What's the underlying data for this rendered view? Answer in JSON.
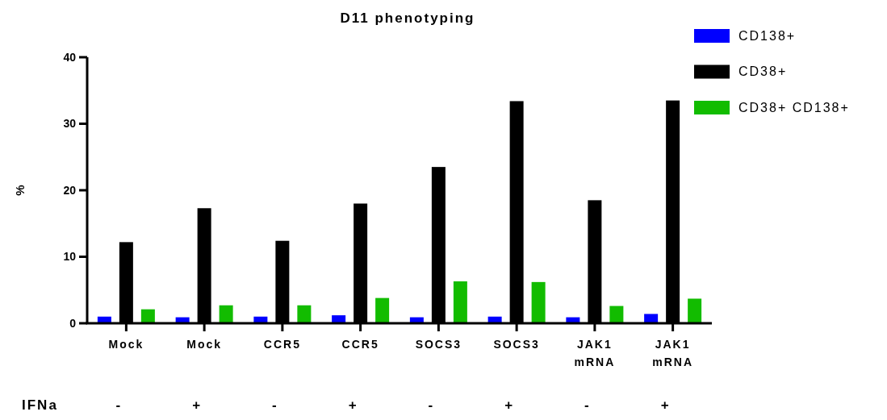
{
  "chart_data": {
    "type": "bar",
    "title": "D11 phenotyping",
    "ylabel": "%",
    "categories": [
      "Mock",
      "Mock",
      "CCR5",
      "CCR5",
      "SOCS3",
      "SOCS3",
      "JAK1 mRNA",
      "JAK1 mRNA"
    ],
    "series": [
      {
        "name": "CD138+",
        "color": "#0000ff",
        "values": [
          1.0,
          0.9,
          1.0,
          1.2,
          0.9,
          1.0,
          0.9,
          1.4
        ]
      },
      {
        "name": "CD38+",
        "color": "#000000",
        "values": [
          12.2,
          17.3,
          12.4,
          18.0,
          23.5,
          33.4,
          18.5,
          33.5
        ]
      },
      {
        "name": "CD38+ CD138+",
        "color": "#12bc00",
        "values": [
          2.1,
          2.7,
          2.7,
          3.8,
          6.3,
          6.2,
          2.6,
          3.7
        ]
      }
    ],
    "annotations": [
      "IFNa",
      "-",
      "+",
      "-",
      "+",
      "-",
      "+",
      "-",
      "+"
    ],
    "ylim": [
      0,
      40
    ],
    "yticks": [
      0,
      10,
      20,
      30,
      40
    ],
    "grid": false,
    "legend": "top right"
  }
}
